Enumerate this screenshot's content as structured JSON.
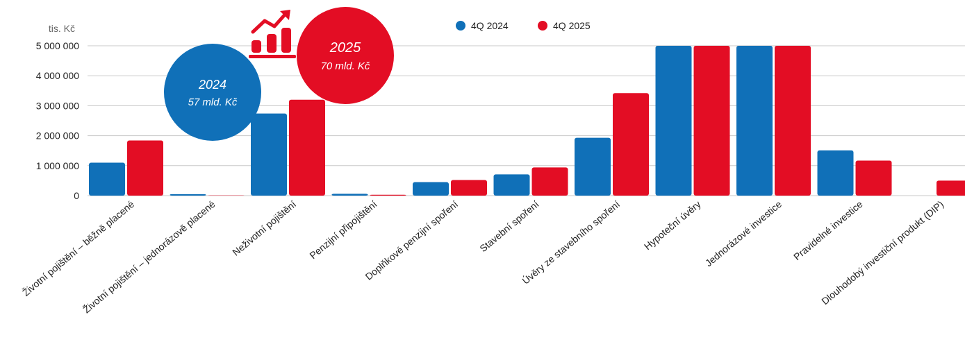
{
  "chart_data": {
    "type": "bar",
    "unit_label": "tis. Kč",
    "ylim": [
      0,
      5000000
    ],
    "yticks": [
      {
        "value": 0,
        "label": "0"
      },
      {
        "value": 1000000,
        "label": "1 000 000"
      },
      {
        "value": 2000000,
        "label": "2 000 000"
      },
      {
        "value": 3000000,
        "label": "3 000 000"
      },
      {
        "value": 4000000,
        "label": "4 000 000"
      },
      {
        "value": 5000000,
        "label": "5 000 000"
      }
    ],
    "grid": true,
    "legend_position": "top",
    "categories": [
      "Životní pojištění – běžně placené",
      "Životní pojištění – jednorázově placené",
      "Neživotní pojištění",
      "Penzijní připojištění",
      "Doplňkové penzijní spoření",
      "Stavební spoření",
      "Úvěry ze stavebního spoření",
      "Hypoteční úvěry",
      "Jednorázové investice",
      "Pravidelné investice",
      "Dlouhodobý investiční produkt (DIP)"
    ],
    "series": [
      {
        "name": "4Q 2024",
        "color": "#1070b8",
        "values": [
          1100000,
          50000,
          2740000,
          60000,
          450000,
          710000,
          1930000,
          5000000,
          5000000,
          1510000,
          0
        ]
      },
      {
        "name": "4Q 2025",
        "color": "#e30d24",
        "values": [
          1840000,
          10000,
          3200000,
          30000,
          520000,
          940000,
          3420000,
          5000000,
          5000000,
          1170000,
          500000
        ]
      }
    ],
    "annotations": [
      {
        "year": "2024",
        "text": "57 mld. Kč",
        "color": "#1070b8"
      },
      {
        "year": "2025",
        "text": "70 mld. Kč",
        "color": "#e30d24"
      }
    ]
  }
}
